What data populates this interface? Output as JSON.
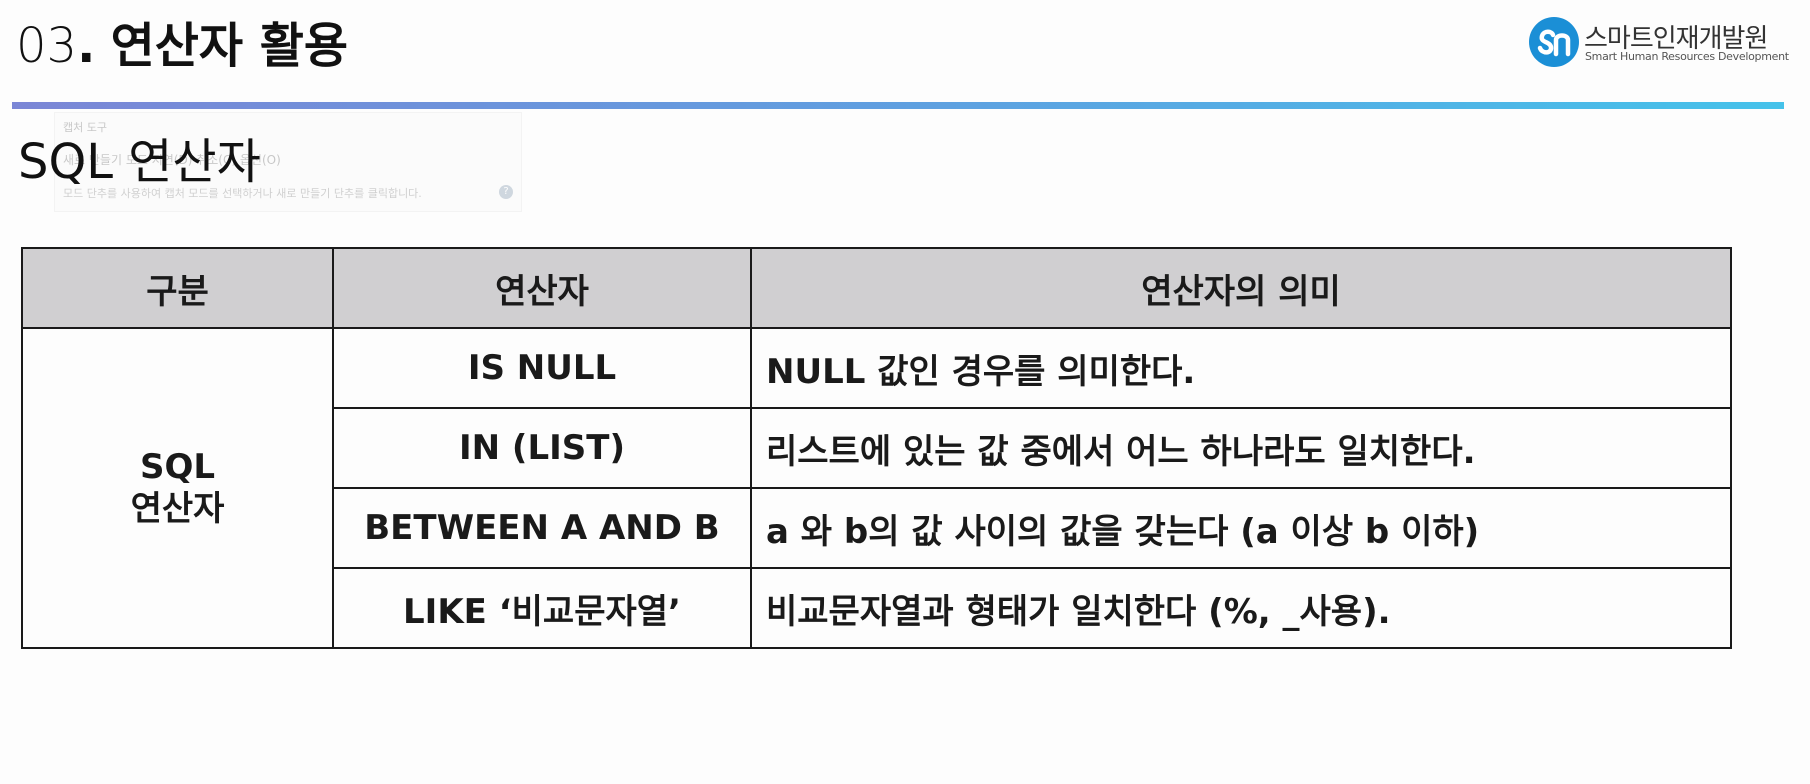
{
  "header": {
    "number": "03",
    "dot": ".",
    "title": "연산자 활용"
  },
  "logo": {
    "name_ko": "스마트인재개발원",
    "name_en": "Smart Human Resources Development",
    "icon": "sm-logo-icon",
    "brand_color": "#1b8fd6"
  },
  "accent": {
    "from": "#7b86d6",
    "to": "#45c2ea"
  },
  "ghost_toolbar": {
    "title": "캡처 도구",
    "row": "새로 만들기   모드   지연(D)   취소(C)   옵션(O)",
    "hint": "모드 단추를 사용하여 캡처 모드를 선택하거나 새로 만들기 단추를 클릭합니다.",
    "help": "?"
  },
  "section_title": "SQL 연산자",
  "table": {
    "headers": [
      "구분",
      "연산자",
      "연산자의 의미"
    ],
    "category_line1": "SQL",
    "category_line2": "연산자",
    "rows": [
      {
        "operator": "IS NULL",
        "meaning": "NULL 값인 경우를 의미한다."
      },
      {
        "operator": "IN (LIST)",
        "meaning": "리스트에 있는 값 중에서 어느 하나라도 일치한다."
      },
      {
        "operator": "BETWEEN A AND B",
        "meaning": "a 와 b의 값 사이의 값을 갖는다 (a 이상 b 이하)"
      },
      {
        "operator": "LIKE ‘비교문자열’",
        "meaning": "비교문자열과 형태가 일치한다 (%, _사용)."
      }
    ]
  }
}
